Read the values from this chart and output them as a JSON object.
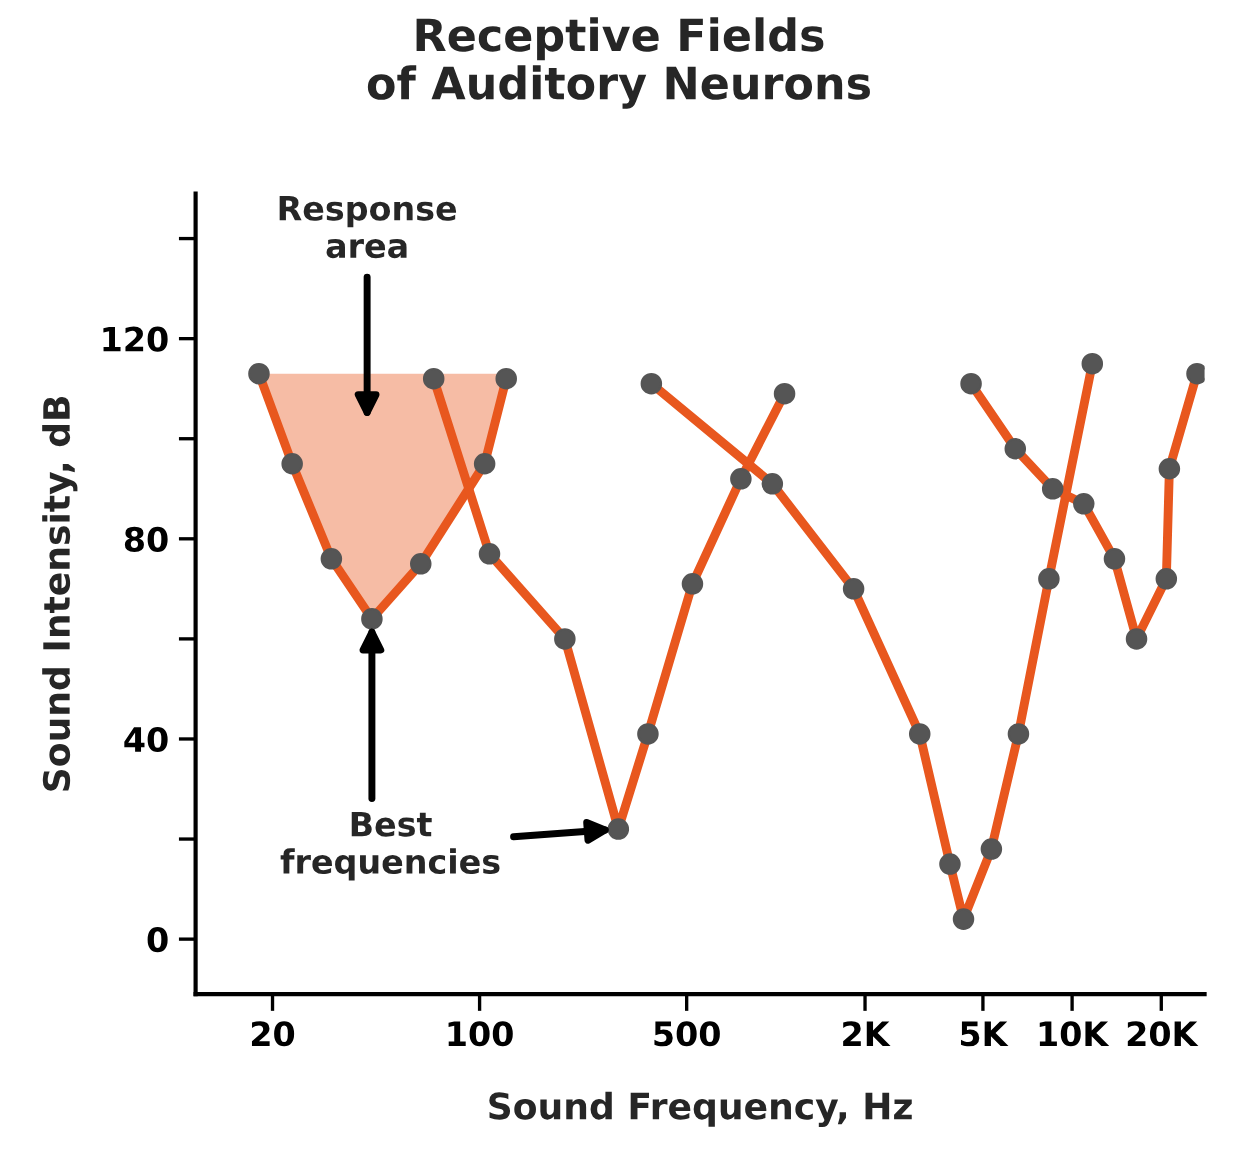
{
  "chart_data": {
    "type": "line",
    "title": "Receptive Fields\nof Auditory Neurons",
    "xlabel": "Sound Frequency, Hz",
    "ylabel": "Sound Intensity, dB",
    "log": "x",
    "xlim": [
      11,
      28000
    ],
    "ylim": [
      -11,
      149
    ],
    "xticks": [
      20,
      100,
      500,
      {
        "value": 2000,
        "label": "2K"
      },
      {
        "value": 5000,
        "label": "5K"
      },
      {
        "value": 10000,
        "label": "10K"
      },
      {
        "value": 20000,
        "label": "20K"
      }
    ],
    "yticks": [
      0,
      {
        "value": 20,
        "label": null
      },
      40,
      {
        "value": 60,
        "label": null
      },
      80,
      {
        "value": 100,
        "label": null
      },
      120,
      {
        "value": 140,
        "label": null
      }
    ],
    "marker": "circle",
    "line_style": "solid",
    "grid": false,
    "legend": false,
    "series": [
      {
        "color": "#e8571e",
        "x": [
          18,
          23.3,
          31.6,
          43.3,
          63.3,
          104,
          123
        ],
        "values": [
          113,
          95,
          76,
          64,
          75,
          95,
          112
        ],
        "lower": [
          113,
          95,
          76,
          64,
          75,
          95,
          112
        ],
        "upper": [
          113,
          113,
          113,
          113,
          113,
          113,
          113
        ]
      },
      {
        "color": "#e8571e",
        "x": [
          70,
          108,
          194,
          294,
          370,
          523,
          762,
          1070
        ],
        "values": [
          112,
          77,
          60,
          22,
          41,
          71,
          92,
          109
        ]
      },
      {
        "color": "#e8571e",
        "x": [
          380,
          973,
          1830,
          3060,
          3870,
          4300,
          5340,
          6590,
          8350,
          11700
        ],
        "values": [
          111,
          91,
          70,
          41,
          15,
          4,
          18,
          41,
          72,
          115
        ]
      },
      {
        "color": "#e8571e",
        "x": [
          4560,
          6430,
          8600,
          10950,
          13900,
          16500,
          20800,
          21300,
          26400
        ],
        "values": [
          111,
          98,
          90,
          87,
          76,
          60,
          72,
          94,
          113
        ]
      }
    ],
    "annotations": [
      "Response\narea",
      {
        "text": "Best\nfrequencies",
        "x": 294,
        "y": 22
      }
    ]
  }
}
